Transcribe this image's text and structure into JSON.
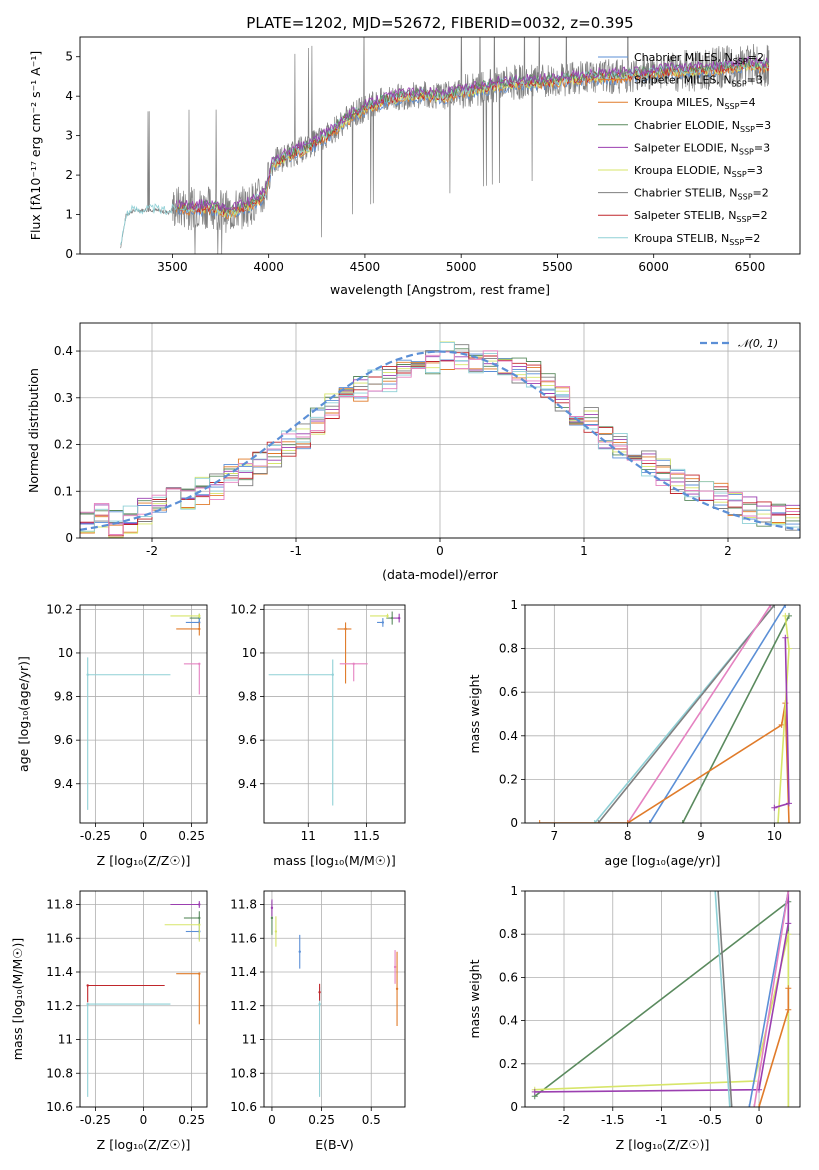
{
  "colors": {
    "chabrier_miles": "#5b8fd6",
    "salpeter_miles": "#e07b2a",
    "kroupa_miles": "#e07b2a",
    "chabrier_elodie": "#5a8a5e",
    "salpeter_elodie": "#9b3fb0",
    "kroupa_elodie": "#d7e56a",
    "chabrier_stelib": "#7f7f7f",
    "salpeter_stelib": "#c0262b",
    "kroupa_stelib": "#8fd0d6",
    "pink": "#e582c1",
    "gaussian": "#5b8fd6",
    "data": "#808080"
  },
  "chart_data": [
    {
      "id": "spectrum",
      "type": "line",
      "title": "PLATE=1202, MJD=52672, FIBERID=0032, z=0.395",
      "xlabel": "wavelength [Angstrom, rest frame]",
      "ylabel": "Flux [fλ10⁻¹⁷ erg cm⁻² s⁻¹ A⁻¹]",
      "xlim": [
        3020,
        6760
      ],
      "ylim": [
        0,
        5.5
      ],
      "xticks": [
        3500,
        4000,
        4500,
        5000,
        5500,
        6000,
        6500
      ],
      "yticks": [
        0,
        1,
        2,
        3,
        4,
        5
      ],
      "continuum": {
        "x": [
          3230,
          3260,
          3300,
          3400,
          3480,
          3520,
          3600,
          3700,
          3800,
          3900,
          3980,
          4020,
          4100,
          4200,
          4300,
          4400,
          4500,
          4600,
          4700,
          4800,
          4900,
          5000,
          5100,
          5200,
          5300,
          5400,
          5500,
          5600,
          5700,
          5800,
          5900,
          6000,
          6100,
          6200,
          6300,
          6400,
          6500,
          6600
        ],
        "y": [
          0.15,
          1.0,
          1.1,
          1.12,
          1.05,
          1.2,
          1.15,
          1.2,
          1.05,
          1.25,
          1.5,
          2.3,
          2.5,
          2.7,
          3.0,
          3.4,
          3.7,
          3.9,
          4.0,
          4.05,
          4.0,
          4.1,
          4.2,
          4.3,
          4.35,
          4.35,
          4.4,
          4.45,
          4.5,
          4.5,
          4.55,
          4.6,
          4.65,
          4.65,
          4.7,
          4.75,
          4.8,
          4.75
        ]
      },
      "legend": [
        {
          "name": "Chabrier MILES, N$_{SSP}$=2",
          "label": "Chabrier MILES, N",
          "sub": "SSP",
          "n": "=2",
          "color_key": "chabrier_miles"
        },
        {
          "name": "Salpeter MILES, N$_{SSP}$=3",
          "label": "Salpeter MILES, N",
          "sub": "SSP",
          "n": "=3",
          "color_key": "salpeter_miles"
        },
        {
          "name": "Kroupa MILES, N$_{SSP}$=4",
          "label": "Kroupa MILES, N",
          "sub": "SSP",
          "n": "=4",
          "color_key": "kroupa_miles"
        },
        {
          "name": "Chabrier ELODIE, N$_{SSP}$=3",
          "label": "Chabrier ELODIE, N",
          "sub": "SSP",
          "n": "=3",
          "color_key": "chabrier_elodie"
        },
        {
          "name": "Salpeter ELODIE, N$_{SSP}$=3",
          "label": "Salpeter ELODIE, N",
          "sub": "SSP",
          "n": "=3",
          "color_key": "salpeter_elodie"
        },
        {
          "name": "Kroupa ELODIE, N$_{SSP}$=3",
          "label": "Kroupa ELODIE, N",
          "sub": "SSP",
          "n": "=3",
          "color_key": "kroupa_elodie"
        },
        {
          "name": "Chabrier STELIB, N$_{SSP}$=2",
          "label": "Chabrier STELIB, N",
          "sub": "SSP",
          "n": "=2",
          "color_key": "chabrier_stelib"
        },
        {
          "name": "Salpeter STELIB, N$_{SSP}$=2",
          "label": "Salpeter STELIB, N",
          "sub": "SSP",
          "n": "=2",
          "color_key": "salpeter_stelib"
        },
        {
          "name": "Kroupa STELIB, N$_{SSP}$=2",
          "label": "Kroupa STELIB, N",
          "sub": "SSP",
          "n": "=2",
          "color_key": "kroupa_stelib"
        }
      ],
      "legend_position": "top-right"
    },
    {
      "id": "residuals",
      "type": "line",
      "xlabel": "(data-model)/error",
      "ylabel": "Normed distribution",
      "xlim": [
        -2.5,
        2.5
      ],
      "ylim": [
        0,
        0.46
      ],
      "xticks": [
        -2,
        -1,
        0,
        1,
        2
      ],
      "yticks": [
        0.0,
        0.1,
        0.2,
        0.3,
        0.4
      ],
      "grid": true,
      "legend": [
        {
          "name": "N(0,1)",
          "label": "𝒩(0, 1)",
          "color_key": "gaussian"
        }
      ],
      "legend_position": "top-right",
      "hist_bins": [
        -2.5,
        2.5,
        50
      ],
      "hist_values": [
        0.04,
        0.05,
        0.03,
        0.04,
        0.06,
        0.07,
        0.08,
        0.09,
        0.1,
        0.11,
        0.13,
        0.14,
        0.16,
        0.18,
        0.2,
        0.22,
        0.25,
        0.28,
        0.3,
        0.32,
        0.33,
        0.34,
        0.36,
        0.37,
        0.38,
        0.39,
        0.39,
        0.38,
        0.38,
        0.37,
        0.36,
        0.35,
        0.33,
        0.3,
        0.27,
        0.25,
        0.22,
        0.2,
        0.18,
        0.16,
        0.14,
        0.12,
        0.11,
        0.1,
        0.09,
        0.07,
        0.06,
        0.05,
        0.05,
        0.04
      ]
    },
    {
      "id": "age_vs_Z",
      "type": "scatter",
      "xlabel": "Z [log₁₀(Z/Z☉)]",
      "ylabel": "age  [log₁₀(age/yr)]",
      "xlim": [
        -0.33,
        0.33
      ],
      "ylim": [
        9.22,
        10.22
      ],
      "xticks": [
        -0.25,
        0.0,
        0.25
      ],
      "yticks": [
        9.4,
        9.6,
        9.8,
        10.0,
        10.2
      ],
      "grid": true,
      "points": [
        {
          "x": -0.29,
          "y": 9.9,
          "xerr": [
            0.0,
            0.43
          ],
          "yerr": [
            0.62,
            0.08
          ],
          "color_key": "kroupa_stelib"
        },
        {
          "x": 0.29,
          "y": 10.16,
          "xerr": [
            0.05,
            0.0
          ],
          "yerr": [
            0.02,
            0.02
          ],
          "color_key": "chabrier_elodie"
        },
        {
          "x": 0.29,
          "y": 10.14,
          "xerr": [
            0.07,
            0.0
          ],
          "yerr": [
            0.02,
            0.02
          ],
          "color_key": "chabrier_miles"
        },
        {
          "x": 0.29,
          "y": 10.11,
          "xerr": [
            0.12,
            0.0
          ],
          "yerr": [
            0.03,
            0.03
          ],
          "color_key": "salpeter_miles"
        },
        {
          "x": 0.29,
          "y": 10.17,
          "xerr": [
            0.15,
            0.0
          ],
          "yerr": [
            0.01,
            0.01
          ],
          "color_key": "kroupa_elodie"
        },
        {
          "x": 0.29,
          "y": 9.95,
          "xerr": [
            0.08,
            0.0
          ],
          "yerr": [
            0.14,
            0.0
          ],
          "color_key": "pink"
        }
      ]
    },
    {
      "id": "age_vs_mass",
      "type": "scatter",
      "xlabel": "mass [log₁₀(M/M☉)]",
      "xlim": [
        10.62,
        11.83
      ],
      "ylim": [
        9.22,
        10.22
      ],
      "xticks": [
        11.0,
        11.5
      ],
      "yticks": [
        9.4,
        9.6,
        9.8,
        10.0,
        10.2
      ],
      "grid": true,
      "points": [
        {
          "x": 11.21,
          "y": 9.9,
          "xerr": [
            0.55,
            0.0
          ],
          "yerr": [
            0.6,
            0.07
          ],
          "color_key": "kroupa_stelib"
        },
        {
          "x": 11.32,
          "y": 10.11,
          "xerr": [
            0.07,
            0.05
          ],
          "yerr": [
            0.25,
            0.03
          ],
          "color_key": "salpeter_miles"
        },
        {
          "x": 11.39,
          "y": 9.95,
          "xerr": [
            0.12,
            0.12
          ],
          "yerr": [
            0.08,
            0.0
          ],
          "color_key": "pink"
        },
        {
          "x": 11.64,
          "y": 10.14,
          "xerr": [
            0.05,
            0.0
          ],
          "yerr": [
            0.02,
            0.02
          ],
          "color_key": "chabrier_miles"
        },
        {
          "x": 11.72,
          "y": 10.16,
          "xerr": [
            0.05,
            0.0
          ],
          "yerr": [
            0.03,
            0.03
          ],
          "color_key": "chabrier_elodie"
        },
        {
          "x": 11.78,
          "y": 10.16,
          "xerr": [
            0.05,
            0.0
          ],
          "yerr": [
            0.02,
            0.02
          ],
          "color_key": "salpeter_elodie"
        },
        {
          "x": 11.68,
          "y": 10.17,
          "xerr": [
            0.15,
            0.0
          ],
          "yerr": [
            0.01,
            0.01
          ],
          "color_key": "kroupa_elodie"
        }
      ]
    },
    {
      "id": "mass_weight_vs_age",
      "type": "line",
      "xlabel": "age  [log₁₀(age/yr)]",
      "ylabel": "mass weight",
      "xlim": [
        6.6,
        10.35
      ],
      "ylim": [
        0,
        1.0
      ],
      "xticks": [
        7,
        8,
        9,
        10
      ],
      "yticks": [
        0.0,
        0.2,
        0.4,
        0.6,
        0.8,
        1.0
      ],
      "grid": true,
      "series": [
        {
          "color_key": "kroupa_stelib",
          "x": [
            7.55,
            10.0
          ],
          "y": [
            0.0,
            1.0
          ]
        },
        {
          "color_key": "chabrier_stelib",
          "x": [
            7.6,
            10.0
          ],
          "y": [
            0.0,
            1.0
          ]
        },
        {
          "color_key": "pink",
          "x": [
            8.0,
            9.95
          ],
          "y": [
            0.0,
            1.0
          ]
        },
        {
          "color_key": "chabrier_miles",
          "x": [
            8.3,
            10.15
          ],
          "y": [
            0.0,
            1.0
          ]
        },
        {
          "color_key": "chabrier_elodie",
          "x": [
            8.75,
            10.2
          ],
          "y": [
            0.0,
            0.95
          ]
        },
        {
          "color_key": "salpeter_miles",
          "x": [
            6.8,
            8.0,
            10.1,
            10.15,
            10.2
          ],
          "y": [
            0.0,
            0.0,
            0.45,
            0.55,
            0.0
          ]
        },
        {
          "color_key": "kroupa_elodie",
          "x": [
            10.05,
            10.2,
            10.15
          ],
          "y": [
            0.0,
            0.8,
            0.95
          ]
        },
        {
          "color_key": "salpeter_elodie",
          "x": [
            10.0,
            10.2,
            10.15
          ],
          "y": [
            0.07,
            0.09,
            0.85
          ]
        }
      ]
    },
    {
      "id": "mass_vs_Z",
      "type": "scatter",
      "xlabel": "Z [log₁₀(Z/Z☉)]",
      "ylabel": "mass [log₁₀(M/M☉)]",
      "xlim": [
        -0.33,
        0.33
      ],
      "ylim": [
        10.6,
        11.88
      ],
      "xticks": [
        -0.25,
        0.0,
        0.25
      ],
      "yticks": [
        10.6,
        10.8,
        11.0,
        11.2,
        11.4,
        11.6,
        11.8
      ],
      "grid": true,
      "points": [
        {
          "x": -0.29,
          "y": 11.21,
          "xerr": [
            0.0,
            0.43
          ],
          "yerr": [
            0.55,
            0.0
          ],
          "color_key": "kroupa_stelib"
        },
        {
          "x": -0.29,
          "y": 11.32,
          "xerr": [
            0.0,
            0.4
          ],
          "yerr": [
            0.1,
            0.0
          ],
          "color_key": "salpeter_stelib"
        },
        {
          "x": 0.29,
          "y": 11.39,
          "xerr": [
            0.12,
            0.0
          ],
          "yerr": [
            0.3,
            0.0
          ],
          "color_key": "salpeter_miles"
        },
        {
          "x": 0.29,
          "y": 11.64,
          "xerr": [
            0.07,
            0.0
          ],
          "yerr": [
            0.05,
            0.05
          ],
          "color_key": "chabrier_miles"
        },
        {
          "x": 0.29,
          "y": 11.72,
          "xerr": [
            0.08,
            0.0
          ],
          "yerr": [
            0.04,
            0.04
          ],
          "color_key": "chabrier_elodie"
        },
        {
          "x": 0.29,
          "y": 11.8,
          "xerr": [
            0.15,
            0.0
          ],
          "yerr": [
            0.02,
            0.02
          ],
          "color_key": "salpeter_elodie"
        },
        {
          "x": 0.29,
          "y": 11.68,
          "xerr": [
            0.18,
            0.0
          ],
          "yerr": [
            0.1,
            0.0
          ],
          "color_key": "kroupa_elodie"
        }
      ]
    },
    {
      "id": "mass_vs_ebv",
      "type": "scatter",
      "xlabel": "E(B-V)",
      "xlim": [
        -0.04,
        0.67
      ],
      "ylim": [
        10.6,
        11.88
      ],
      "xticks": [
        0.0,
        0.25,
        0.5
      ],
      "yticks": [
        10.6,
        10.8,
        11.0,
        11.2,
        11.4,
        11.6,
        11.8
      ],
      "grid": true,
      "points": [
        {
          "x": 0.24,
          "y": 11.21,
          "xerr": [
            0,
            0
          ],
          "yerr": [
            0.55,
            0.1
          ],
          "color_key": "kroupa_stelib"
        },
        {
          "x": 0.24,
          "y": 11.28,
          "xerr": [
            0,
            0
          ],
          "yerr": [
            0.05,
            0.05
          ],
          "color_key": "salpeter_stelib"
        },
        {
          "x": 0.63,
          "y": 11.3,
          "xerr": [
            0,
            0
          ],
          "yerr": [
            0.22,
            0.22
          ],
          "color_key": "salpeter_miles"
        },
        {
          "x": 0.62,
          "y": 11.43,
          "xerr": [
            0,
            0
          ],
          "yerr": [
            0.1,
            0.1
          ],
          "color_key": "pink"
        },
        {
          "x": 0.14,
          "y": 11.52,
          "xerr": [
            0,
            0
          ],
          "yerr": [
            0.1,
            0.1
          ],
          "color_key": "chabrier_miles"
        },
        {
          "x": 0.0,
          "y": 11.72,
          "xerr": [
            0,
            0
          ],
          "yerr": [
            0.1,
            0.1
          ],
          "color_key": "chabrier_elodie"
        },
        {
          "x": 0.0,
          "y": 11.78,
          "xerr": [
            0,
            0
          ],
          "yerr": [
            0.05,
            0.05
          ],
          "color_key": "salpeter_elodie"
        },
        {
          "x": 0.02,
          "y": 11.64,
          "xerr": [
            0,
            0
          ],
          "yerr": [
            0.09,
            0.09
          ],
          "color_key": "kroupa_elodie"
        }
      ]
    },
    {
      "id": "mass_weight_vs_Z",
      "type": "line",
      "xlabel": "Z [log₁₀(Z/Z☉)]",
      "ylabel": "mass weight",
      "xlim": [
        -2.4,
        0.42
      ],
      "ylim": [
        0,
        1.0
      ],
      "xticks": [
        -2.0,
        -1.5,
        -1.0,
        -0.5,
        0.0
      ],
      "yticks": [
        0.0,
        0.2,
        0.4,
        0.6,
        0.8,
        1.0
      ],
      "grid": true,
      "series": [
        {
          "color_key": "chabrier_elodie",
          "x": [
            -2.3,
            0.3,
            0.3
          ],
          "y": [
            0.05,
            0.95,
            0.0
          ]
        },
        {
          "color_key": "kroupa_elodie",
          "x": [
            -2.3,
            -0.05,
            0.3,
            0.3
          ],
          "y": [
            0.08,
            0.12,
            0.8,
            0.0
          ]
        },
        {
          "color_key": "salpeter_elodie",
          "x": [
            -2.3,
            0.0,
            0.3,
            0.3
          ],
          "y": [
            0.07,
            0.08,
            0.85,
            1.0
          ]
        },
        {
          "color_key": "kroupa_stelib",
          "x": [
            -0.45,
            -0.3
          ],
          "y": [
            1.0,
            0.0
          ]
        },
        {
          "color_key": "chabrier_stelib",
          "x": [
            -0.42,
            -0.28
          ],
          "y": [
            1.0,
            0.0
          ]
        },
        {
          "color_key": "chabrier_miles",
          "x": [
            -0.1,
            0.3
          ],
          "y": [
            0.0,
            1.0
          ]
        },
        {
          "color_key": "pink",
          "x": [
            -0.05,
            0.3
          ],
          "y": [
            0.0,
            1.0
          ]
        },
        {
          "color_key": "salpeter_miles",
          "x": [
            0.0,
            0.3,
            0.3
          ],
          "y": [
            0.0,
            0.45,
            0.55
          ]
        }
      ]
    }
  ]
}
